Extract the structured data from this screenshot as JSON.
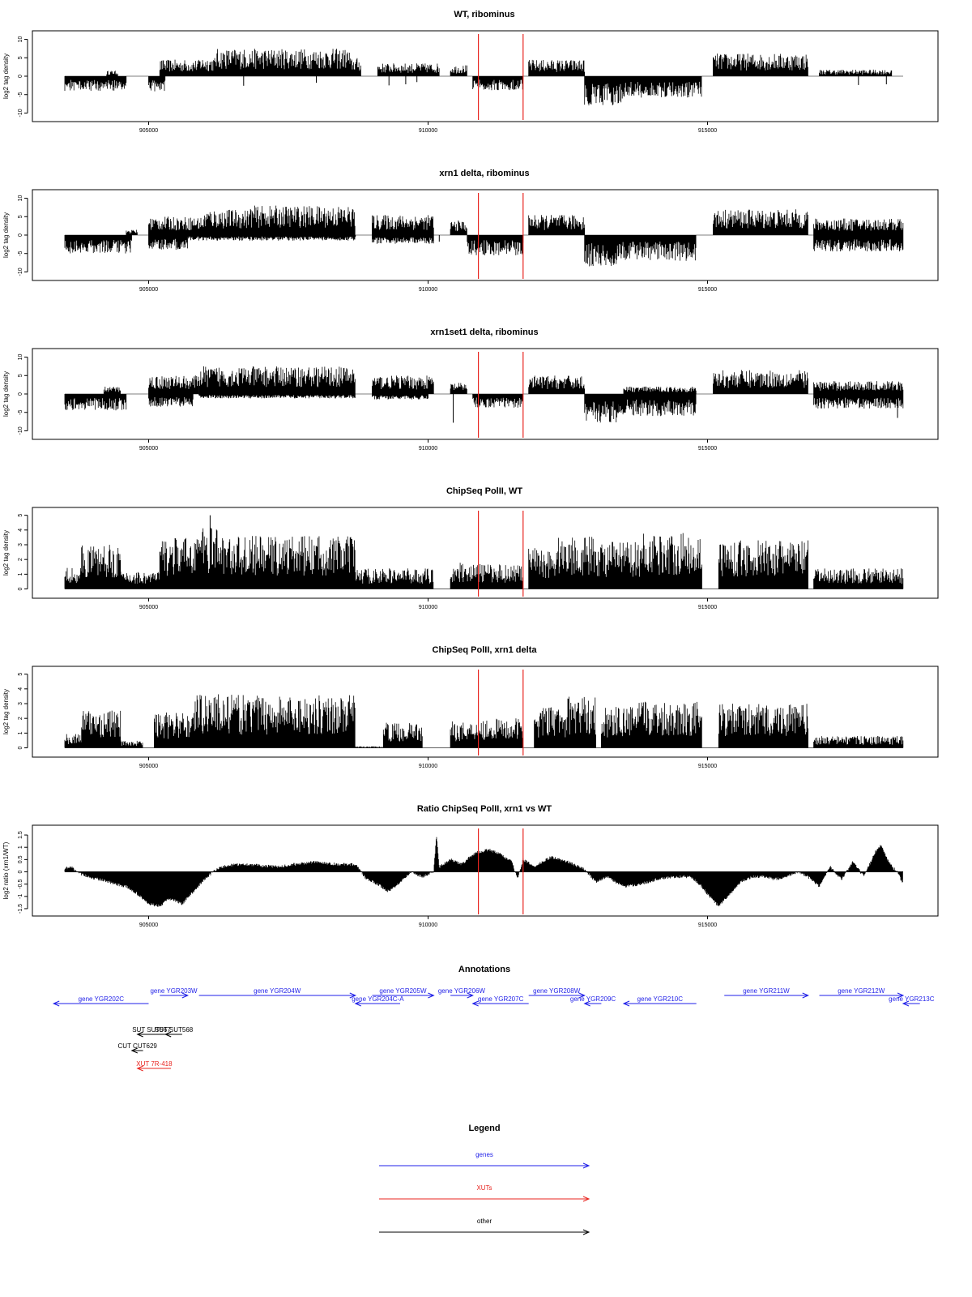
{
  "chart_data": [
    {
      "type": "bar",
      "title": "WT, ribominus",
      "ylabel": "log2 tag density",
      "xlim": [
        903300,
        918600
      ],
      "ylim": [
        -11,
        11
      ],
      "yticks": [
        -10,
        -5,
        0,
        5,
        10
      ],
      "xticks": [
        905000,
        910000,
        915000
      ],
      "markers": [
        910900,
        911700
      ],
      "marker_color": "#e8241f",
      "plus_segments": [
        [
          904250,
          904450,
          1.5
        ],
        [
          905200,
          905900,
          4.5
        ],
        [
          905900,
          906200,
          5.2
        ],
        [
          906200,
          908600,
          7.5
        ],
        [
          908600,
          908800,
          5.0
        ],
        [
          909100,
          910200,
          3.5
        ],
        [
          910400,
          910700,
          3.0
        ],
        [
          911800,
          912800,
          4.5
        ],
        [
          915100,
          916800,
          6.2
        ],
        [
          917000,
          918300,
          1.8
        ]
      ],
      "minus_segments": [
        [
          903500,
          904600,
          -4.0
        ],
        [
          905000,
          905300,
          -4.2
        ],
        [
          910800,
          911700,
          -3.8
        ],
        [
          912800,
          913500,
          -8.0
        ],
        [
          913500,
          914900,
          -5.8
        ]
      ],
      "isolated": [
        [
          906700,
          -2.6
        ],
        [
          908000,
          -1.8
        ],
        [
          909300,
          -2.5
        ],
        [
          909600,
          -2.2
        ],
        [
          909800,
          -1.6
        ],
        [
          917700,
          -2.4
        ],
        [
          918200,
          -2.2
        ]
      ]
    },
    {
      "type": "bar",
      "title": "xrn1 delta, ribominus",
      "ylabel": "log2 tag density",
      "xlim": [
        903300,
        918600
      ],
      "ylim": [
        -11,
        11
      ],
      "yticks": [
        -10,
        -5,
        0,
        5,
        10
      ],
      "xticks": [
        905000,
        910000,
        915000
      ],
      "markers": [
        910900,
        911700
      ],
      "marker_color": "#e8241f",
      "plus_segments": [
        [
          904600,
          904800,
          1.5
        ],
        [
          905000,
          906000,
          5.0
        ],
        [
          906000,
          906800,
          7.0
        ],
        [
          906800,
          908700,
          8.0
        ],
        [
          909000,
          910100,
          5.5
        ],
        [
          910400,
          910700,
          4.0
        ],
        [
          911800,
          912800,
          5.5
        ],
        [
          915100,
          916800,
          7.0
        ],
        [
          916900,
          918500,
          4.5
        ]
      ],
      "minus_segments": [
        [
          903500,
          904700,
          -5.0
        ],
        [
          905000,
          905700,
          -4.0
        ],
        [
          905700,
          908700,
          -1.5
        ],
        [
          909000,
          910100,
          -2.4
        ],
        [
          910700,
          911700,
          -5.5
        ],
        [
          912800,
          913400,
          -8.5
        ],
        [
          913400,
          914800,
          -7.0
        ],
        [
          916900,
          918500,
          -4.5
        ]
      ],
      "isolated": [
        [
          910200,
          -1.8
        ]
      ]
    },
    {
      "type": "bar",
      "title": "xrn1set1 delta, ribominus",
      "ylabel": "log2 tag density",
      "xlim": [
        903300,
        918600
      ],
      "ylim": [
        -11,
        11
      ],
      "yticks": [
        -10,
        -5,
        0,
        5,
        10
      ],
      "xticks": [
        905000,
        910000,
        915000
      ],
      "markers": [
        910900,
        911700
      ],
      "marker_color": "#e8241f",
      "plus_segments": [
        [
          904200,
          904500,
          2.0
        ],
        [
          905000,
          905900,
          5.0
        ],
        [
          905900,
          908700,
          7.5
        ],
        [
          909000,
          910100,
          5.0
        ],
        [
          910400,
          910700,
          3.0
        ],
        [
          911800,
          912800,
          5.0
        ],
        [
          913500,
          914800,
          2.0
        ],
        [
          915100,
          916800,
          6.5
        ],
        [
          916900,
          918500,
          3.5
        ]
      ],
      "minus_segments": [
        [
          903500,
          904600,
          -4.5
        ],
        [
          905000,
          905800,
          -3.5
        ],
        [
          905900,
          908700,
          -1.2
        ],
        [
          909000,
          910000,
          -1.5
        ],
        [
          910800,
          911700,
          -3.8
        ],
        [
          912800,
          913400,
          -8.0
        ],
        [
          913400,
          914800,
          -6.0
        ],
        [
          916900,
          918500,
          -4.0
        ]
      ],
      "isolated": [
        [
          910450,
          -7.8
        ],
        [
          918400,
          -6.5
        ]
      ]
    },
    {
      "type": "bar",
      "title": "ChipSeq PolII, WT",
      "ylabel": "log2 tag density",
      "xlim": [
        903300,
        918600
      ],
      "ylim": [
        -0.3,
        5.2
      ],
      "yticks": [
        0,
        1,
        2,
        3,
        4,
        5
      ],
      "xticks": [
        905000,
        910000,
        915000
      ],
      "markers": [
        910900,
        911700
      ],
      "marker_color": "#e8241f",
      "plus_segments": [
        [
          903500,
          903800,
          1.5
        ],
        [
          903800,
          904500,
          3.0
        ],
        [
          904500,
          904800,
          1.2
        ],
        [
          904800,
          905200,
          1.2
        ],
        [
          905200,
          905800,
          3.5
        ],
        [
          905800,
          906300,
          4.2
        ],
        [
          906300,
          908700,
          3.6
        ],
        [
          908700,
          910100,
          1.4
        ],
        [
          910400,
          910800,
          1.8
        ],
        [
          910800,
          911700,
          1.7
        ],
        [
          911800,
          912300,
          2.8
        ],
        [
          912300,
          913000,
          3.6
        ],
        [
          913000,
          913800,
          3.2
        ],
        [
          913800,
          914900,
          3.8
        ],
        [
          915200,
          916800,
          3.3
        ],
        [
          916900,
          918500,
          1.4
        ]
      ],
      "minus_segments": [],
      "isolated": [
        [
          906100,
          5.0
        ]
      ]
    },
    {
      "type": "bar",
      "title": "ChipSeq PolII, xrn1 delta",
      "ylabel": "log2 tag density",
      "xlim": [
        903300,
        918600
      ],
      "ylim": [
        -0.3,
        5.2
      ],
      "yticks": [
        0,
        1,
        2,
        3,
        4,
        5
      ],
      "xticks": [
        905000,
        910000,
        915000
      ],
      "markers": [
        910900,
        911700
      ],
      "marker_color": "#e8241f",
      "plus_segments": [
        [
          903500,
          903800,
          1.0
        ],
        [
          903800,
          904500,
          2.6
        ],
        [
          904500,
          904900,
          0.5
        ],
        [
          905100,
          905800,
          2.4
        ],
        [
          905800,
          906300,
          3.8
        ],
        [
          906300,
          908700,
          3.6
        ],
        [
          908700,
          909200,
          0.1
        ],
        [
          909200,
          909900,
          1.7
        ],
        [
          910400,
          910800,
          1.8
        ],
        [
          910800,
          911700,
          2.0
        ],
        [
          911900,
          912500,
          2.8
        ],
        [
          912500,
          913000,
          3.5
        ],
        [
          913100,
          913700,
          2.8
        ],
        [
          913700,
          914900,
          3.2
        ],
        [
          915200,
          916800,
          3.0
        ],
        [
          916900,
          918500,
          0.8
        ]
      ],
      "minus_segments": [],
      "isolated": []
    },
    {
      "type": "area",
      "title": "Ratio ChipSeq PolII, xrn1 vs WT",
      "ylabel": "log2 ratio (xrn1/WT)",
      "xlim": [
        903300,
        918600
      ],
      "ylim": [
        -1.6,
        1.7
      ],
      "yticks": [
        -1.5,
        -1,
        -0.5,
        0,
        0.5,
        1,
        1.5
      ],
      "xticks": [
        905000,
        910000,
        915000
      ],
      "markers": [
        910900,
        911700
      ],
      "marker_color": "#e8241f",
      "x": [
        903500,
        903600,
        903700,
        903800,
        904000,
        904200,
        904400,
        904600,
        904800,
        905000,
        905200,
        905300,
        905400,
        905600,
        905800,
        906000,
        906200,
        906400,
        906600,
        906800,
        907000,
        907300,
        907600,
        908000,
        908400,
        908700,
        908900,
        909100,
        909300,
        909500,
        909700,
        909900,
        910100,
        910150,
        910200,
        910400,
        910600,
        910800,
        910900,
        911100,
        911300,
        911500,
        911600,
        911700,
        911900,
        912200,
        912500,
        912800,
        913000,
        913200,
        913500,
        913800,
        914100,
        914400,
        914700,
        914900,
        915000,
        915200,
        915400,
        915600,
        915800,
        916000,
        916200,
        916400,
        916600,
        916800,
        917000,
        917200,
        917400,
        917600,
        917800,
        918000,
        918100,
        918200,
        918300,
        918400,
        918500
      ],
      "values": [
        0.1,
        0.25,
        0.0,
        -0.1,
        -0.25,
        -0.35,
        -0.5,
        -0.6,
        -0.9,
        -1.3,
        -1.4,
        -1.2,
        -1.1,
        -1.3,
        -0.8,
        -0.3,
        0.1,
        0.25,
        0.3,
        0.3,
        0.25,
        0.2,
        0.3,
        0.4,
        0.3,
        0.3,
        -0.3,
        -0.5,
        -0.8,
        -0.4,
        0.0,
        -0.2,
        0.0,
        1.5,
        0.2,
        0.5,
        0.3,
        0.7,
        0.8,
        0.9,
        0.7,
        0.4,
        -0.3,
        0.5,
        0.2,
        0.6,
        0.4,
        0.1,
        -0.4,
        -0.2,
        -0.6,
        -0.5,
        -0.3,
        -0.2,
        -0.2,
        -0.6,
        -0.9,
        -1.4,
        -0.9,
        -0.4,
        -0.2,
        -0.2,
        -0.3,
        -0.2,
        0.0,
        -0.2,
        -0.6,
        0.2,
        -0.3,
        0.4,
        -0.2,
        0.8,
        1.1,
        0.6,
        0.2,
        0.0,
        -0.5
      ]
    }
  ],
  "annotations": {
    "title": "Annotations",
    "xlim": [
      903300,
      918600
    ],
    "items": [
      {
        "label": "gene YGR202C",
        "start": 905000,
        "end": 903300,
        "row": 1,
        "kind": "gene"
      },
      {
        "label": "gene YGR203W",
        "start": 905200,
        "end": 905700,
        "row": 0,
        "kind": "gene"
      },
      {
        "label": "gene YGR204W",
        "start": 905900,
        "end": 908700,
        "row": 0,
        "kind": "gene"
      },
      {
        "label": "gene YGR205W",
        "start": 909000,
        "end": 910100,
        "row": 0,
        "kind": "gene"
      },
      {
        "label": "gene YGR204C-A",
        "start": 909500,
        "end": 908700,
        "row": 1,
        "kind": "gene"
      },
      {
        "label": "gene YGR206W",
        "start": 910400,
        "end": 910800,
        "row": 0,
        "kind": "gene"
      },
      {
        "label": "gene YGR207C",
        "start": 911800,
        "end": 910800,
        "row": 1,
        "kind": "gene"
      },
      {
        "label": "gene YGR208W",
        "start": 911800,
        "end": 912800,
        "row": 0,
        "kind": "gene"
      },
      {
        "label": "gene YGR209C",
        "start": 913100,
        "end": 912800,
        "row": 1,
        "kind": "gene"
      },
      {
        "label": "gene YGR210C",
        "start": 914800,
        "end": 913500,
        "row": 1,
        "kind": "gene"
      },
      {
        "label": "gene YGR211W",
        "start": 915300,
        "end": 916800,
        "row": 0,
        "kind": "gene"
      },
      {
        "label": "gene YGR212W",
        "start": 917000,
        "end": 918500,
        "row": 0,
        "kind": "gene"
      },
      {
        "label": "gene YGR213C",
        "start": 918800,
        "end": 918500,
        "row": 1,
        "kind": "gene"
      },
      {
        "label": "SUT SUT567",
        "start": 905300,
        "end": 904800,
        "row": 2,
        "kind": "other"
      },
      {
        "label": "SUT SUT568",
        "start": 905600,
        "end": 905300,
        "row": 2,
        "kind": "other"
      },
      {
        "label": "CUT CUT629",
        "start": 904900,
        "end": 904700,
        "row": 3,
        "kind": "other"
      },
      {
        "label": "XUT 7R-418",
        "start": 905400,
        "end": 904800,
        "row": 4,
        "kind": "xut"
      }
    ]
  },
  "legend": {
    "title": "Legend",
    "items": [
      {
        "label": "genes",
        "color": "#1f1fe8"
      },
      {
        "label": "XUTs",
        "color": "#e8241f"
      },
      {
        "label": "other",
        "color": "#000000"
      }
    ]
  },
  "colors": {
    "gene": "#1f1fe8",
    "xut": "#e8241f",
    "other": "#000000",
    "marker": "#e8241f"
  }
}
